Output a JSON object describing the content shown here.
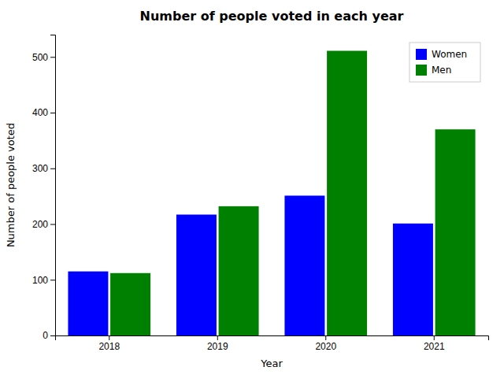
{
  "chart_data": {
    "type": "bar",
    "title": "Number of people voted in each year",
    "xlabel": "Year",
    "ylabel": "Number of people voted",
    "categories": [
      "2018",
      "2019",
      "2020",
      "2021"
    ],
    "series": [
      {
        "name": "Women",
        "color": "#0000ff",
        "values": [
          115,
          217,
          251,
          201
        ]
      },
      {
        "name": "Men",
        "color": "#008000",
        "values": [
          112,
          232,
          511,
          370
        ]
      }
    ],
    "ylim": [
      0,
      540
    ],
    "yticks": [
      0,
      100,
      200,
      300,
      400,
      500
    ],
    "grid": false,
    "legend": "upper right"
  }
}
